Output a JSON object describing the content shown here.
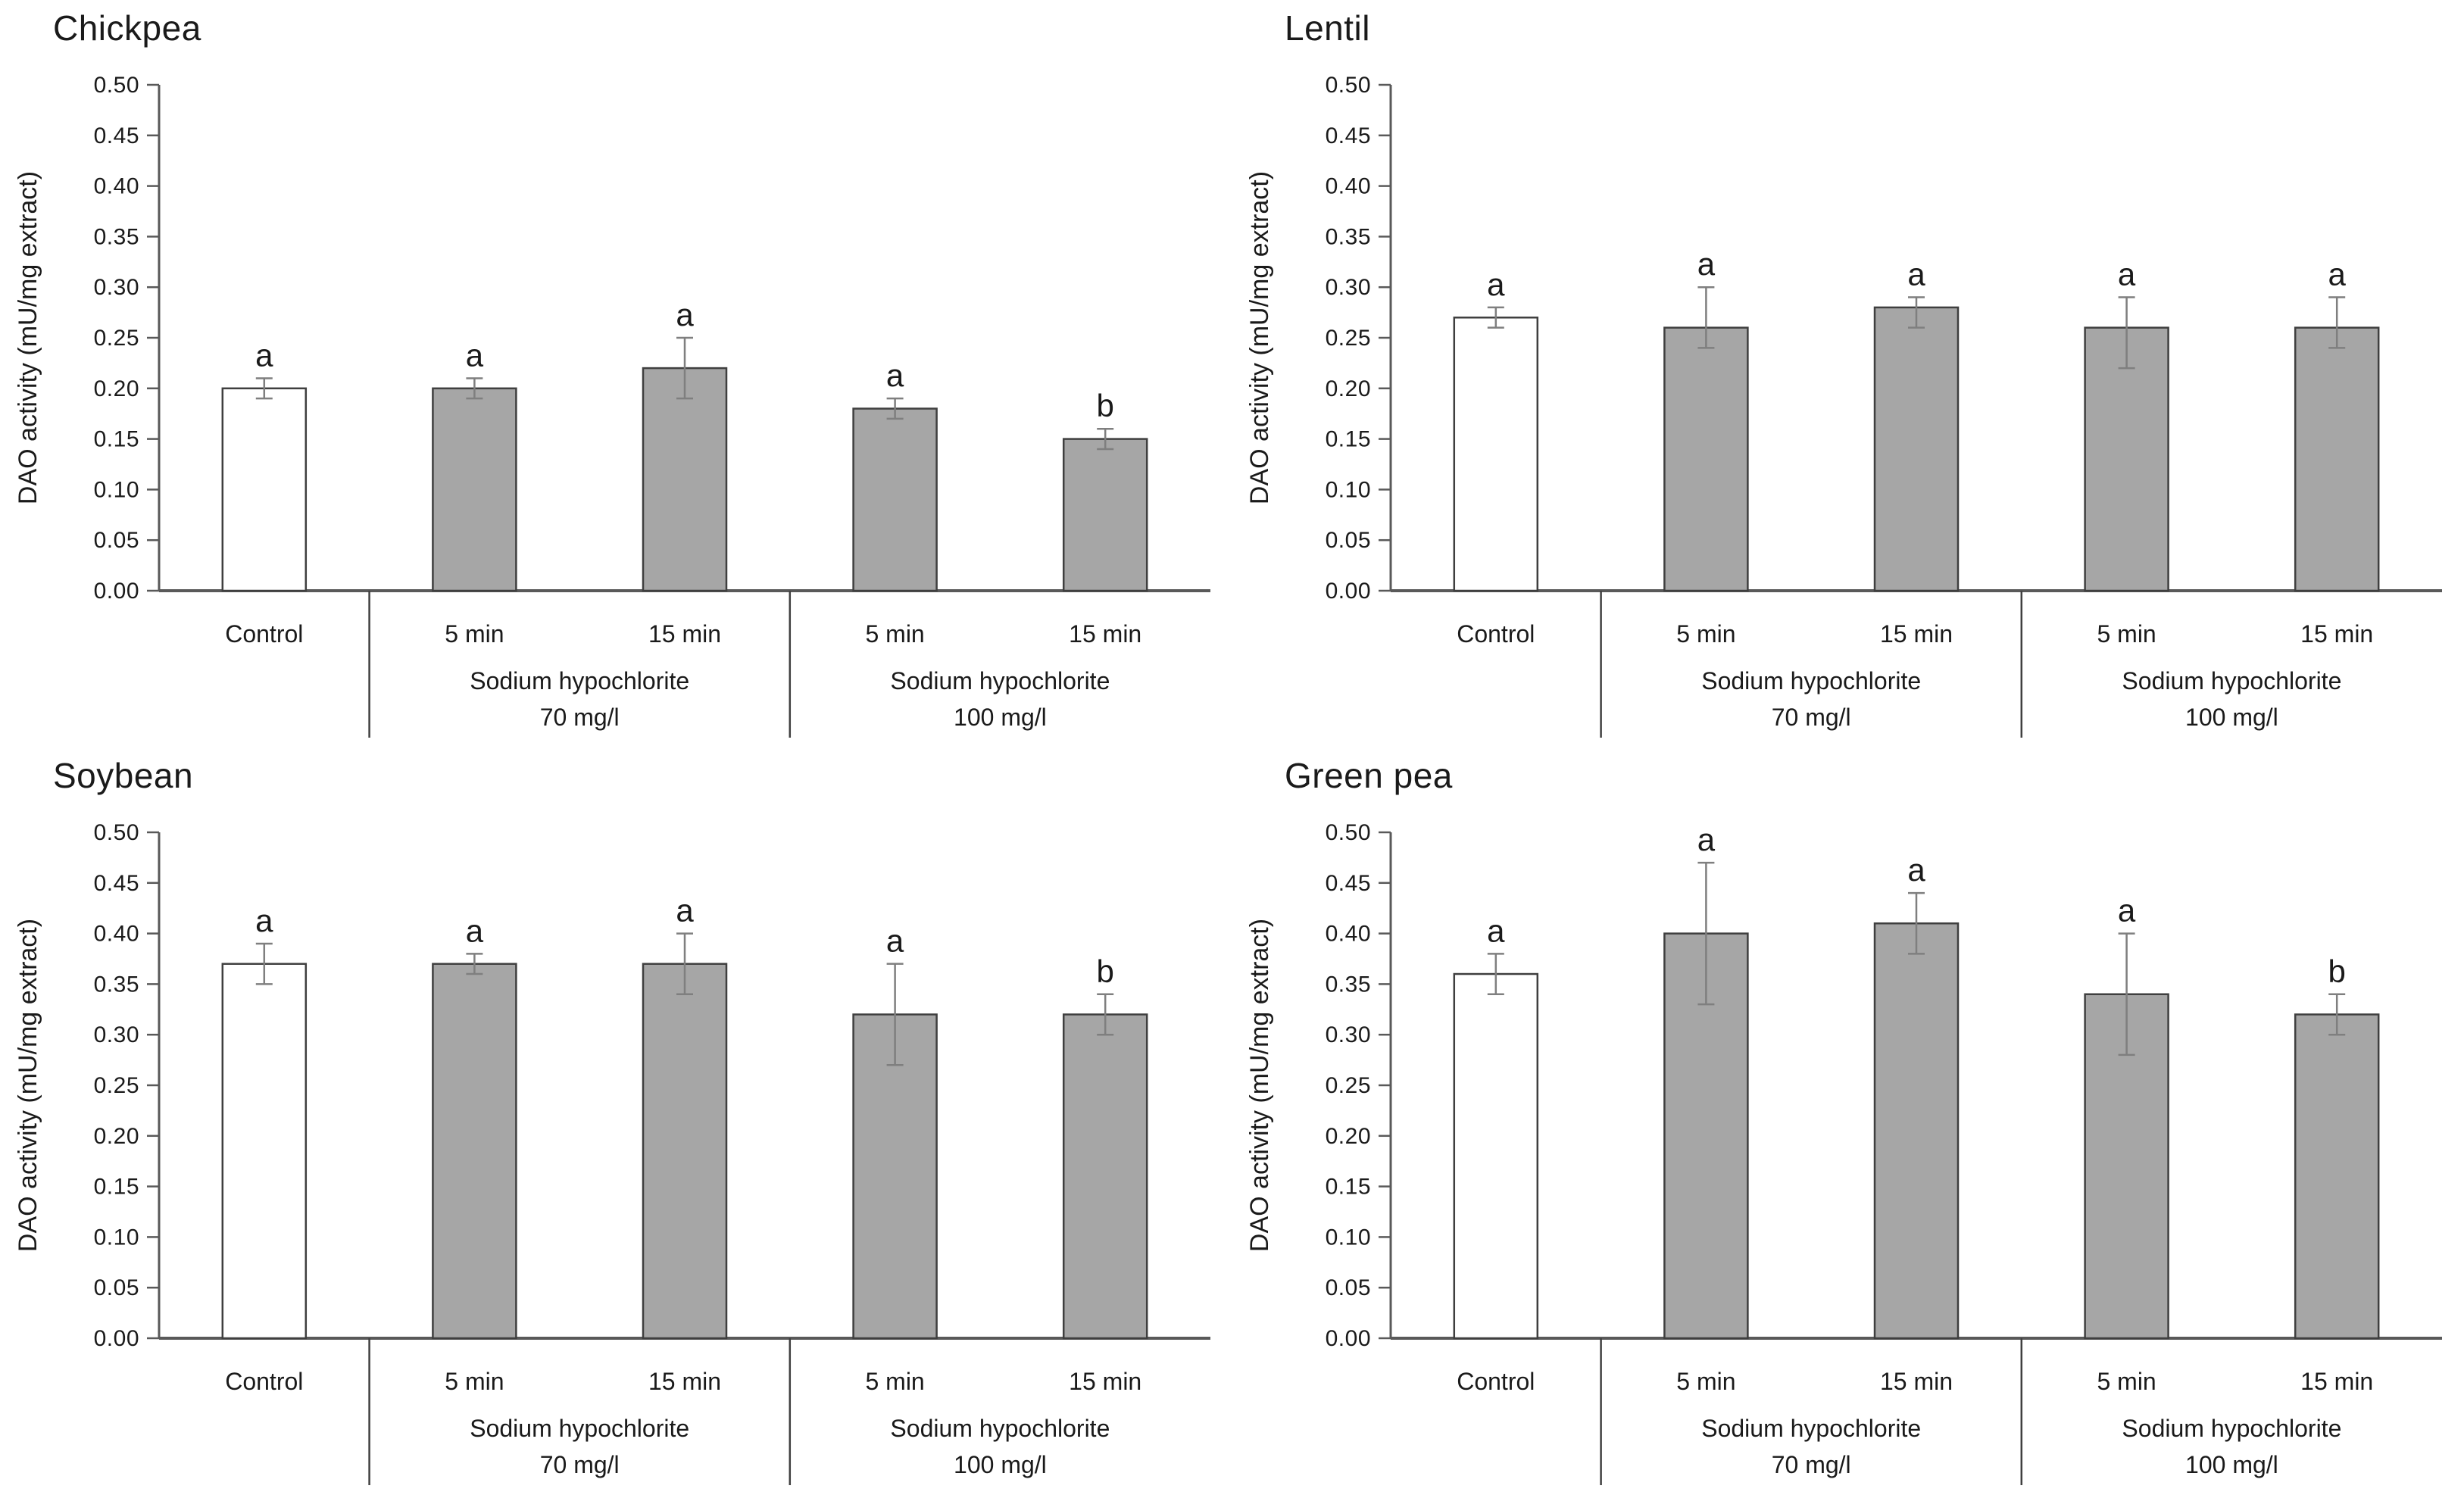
{
  "figure": {
    "background": "#ffffff",
    "panel_titles": [
      "Chickpea",
      "Lentil",
      "Soybean",
      "Green pea"
    ]
  },
  "colors": {
    "control_fill": "#ffffff",
    "treated_fill": "#a6a6a6",
    "bar_border": "#3f3f3f",
    "error_bar": "#7f7f7f",
    "axis": "#595959",
    "divider": "#404040",
    "text": "#1a1a1a"
  },
  "chart_data": [
    {
      "type": "bar",
      "title": "Chickpea",
      "xlabel": "",
      "ylabel": "DAO activity (mU/mg extract)",
      "ylim": [
        0,
        0.5
      ],
      "ytick_step": 0.05,
      "grid": false,
      "legend": "none",
      "categories": [
        "Control",
        "5 min",
        "15 min",
        "5 min",
        "15 min"
      ],
      "values": [
        0.2,
        0.2,
        0.22,
        0.18,
        0.15
      ],
      "errors_up": [
        0.01,
        0.01,
        0.03,
        0.01,
        0.01
      ],
      "errors_down": [
        0.01,
        0.01,
        0.03,
        0.01,
        0.01
      ],
      "sig_letters": [
        "a",
        "a",
        "a",
        "a",
        "b"
      ],
      "bar_fills": [
        "control",
        "treated",
        "treated",
        "treated",
        "treated"
      ],
      "groups": [
        {
          "line1": "Sodium hypochlorite",
          "line2": "70 mg/l",
          "start": 1,
          "end": 2
        },
        {
          "line1": "Sodium hypochlorite",
          "line2": "100 mg/l",
          "start": 3,
          "end": 4
        }
      ]
    },
    {
      "type": "bar",
      "title": "Lentil",
      "xlabel": "",
      "ylabel": "DAO activity (mU/mg extract)",
      "ylim": [
        0,
        0.5
      ],
      "ytick_step": 0.05,
      "grid": false,
      "legend": "none",
      "categories": [
        "Control",
        "5 min",
        "15 min",
        "5 min",
        "15 min"
      ],
      "values": [
        0.27,
        0.26,
        0.28,
        0.26,
        0.26
      ],
      "errors_up": [
        0.01,
        0.04,
        0.01,
        0.03,
        0.03
      ],
      "errors_down": [
        0.01,
        0.02,
        0.02,
        0.04,
        0.02
      ],
      "sig_letters": [
        "a",
        "a",
        "a",
        "a",
        "a"
      ],
      "bar_fills": [
        "control",
        "treated",
        "treated",
        "treated",
        "treated"
      ],
      "groups": [
        {
          "line1": "Sodium hypochlorite",
          "line2": "70 mg/l",
          "start": 1,
          "end": 2
        },
        {
          "line1": "Sodium hypochlorite",
          "line2": "100 mg/l",
          "start": 3,
          "end": 4
        }
      ]
    },
    {
      "type": "bar",
      "title": "Soybean",
      "xlabel": "",
      "ylabel": "DAO activity (mU/mg extract)",
      "ylim": [
        0,
        0.5
      ],
      "ytick_step": 0.05,
      "grid": false,
      "legend": "none",
      "categories": [
        "Control",
        "5 min",
        "15 min",
        "5 min",
        "15 min"
      ],
      "values": [
        0.37,
        0.37,
        0.37,
        0.32,
        0.32
      ],
      "errors_up": [
        0.02,
        0.01,
        0.03,
        0.05,
        0.02
      ],
      "errors_down": [
        0.02,
        0.01,
        0.03,
        0.05,
        0.02
      ],
      "sig_letters": [
        "a",
        "a",
        "a",
        "a",
        "b"
      ],
      "bar_fills": [
        "control",
        "treated",
        "treated",
        "treated",
        "treated"
      ],
      "groups": [
        {
          "line1": "Sodium hypochlorite",
          "line2": "70 mg/l",
          "start": 1,
          "end": 2
        },
        {
          "line1": "Sodium hypochlorite",
          "line2": "100 mg/l",
          "start": 3,
          "end": 4
        }
      ]
    },
    {
      "type": "bar",
      "title": "Green pea",
      "xlabel": "",
      "ylabel": "DAO activity (mU/mg extract)",
      "ylim": [
        0,
        0.5
      ],
      "ytick_step": 0.05,
      "grid": false,
      "legend": "none",
      "categories": [
        "Control",
        "5 min",
        "15 min",
        "5 min",
        "15 min"
      ],
      "values": [
        0.36,
        0.4,
        0.41,
        0.34,
        0.32
      ],
      "errors_up": [
        0.02,
        0.07,
        0.03,
        0.06,
        0.02
      ],
      "errors_down": [
        0.02,
        0.07,
        0.03,
        0.06,
        0.02
      ],
      "sig_letters": [
        "a",
        "a",
        "a",
        "a",
        "b"
      ],
      "bar_fills": [
        "control",
        "treated",
        "treated",
        "treated",
        "treated"
      ],
      "groups": [
        {
          "line1": "Sodium hypochlorite",
          "line2": "70 mg/l",
          "start": 1,
          "end": 2
        },
        {
          "line1": "Sodium hypochlorite",
          "line2": "100 mg/l",
          "start": 3,
          "end": 4
        }
      ]
    }
  ]
}
